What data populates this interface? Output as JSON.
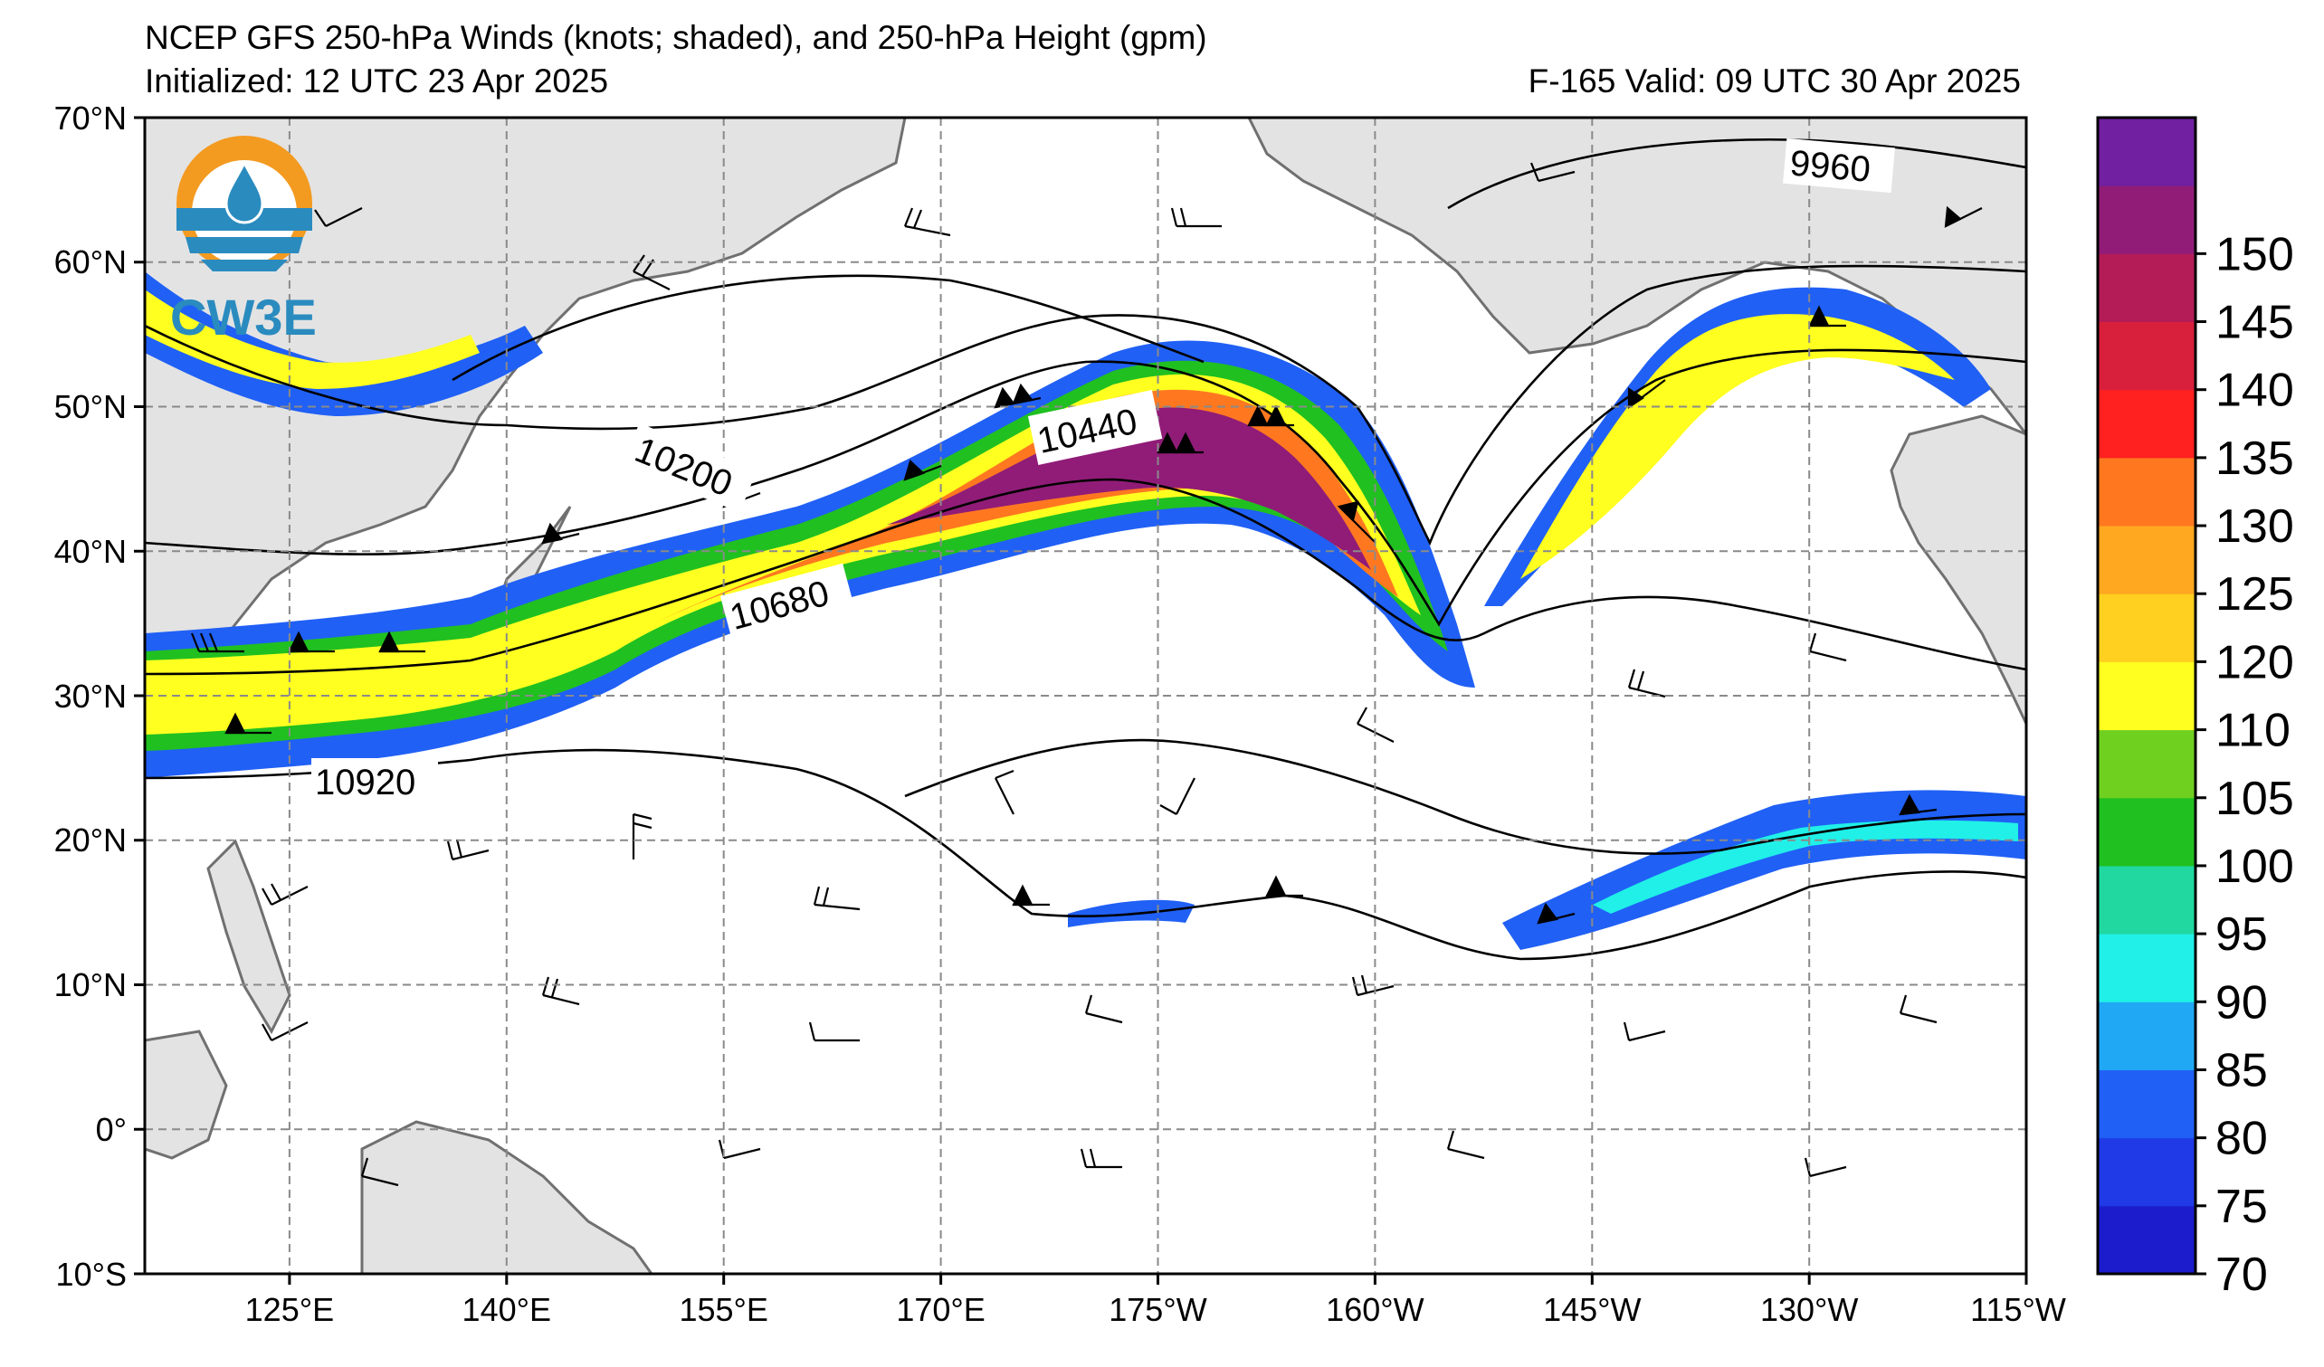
{
  "title": {
    "line1": "NCEP GFS 250-hPa Winds (knots; shaded), and 250-hPa Height (gpm)",
    "initialized": "Initialized: 12 UTC 23 Apr 2025",
    "valid": "F-165  Valid: 09 UTC 30 Apr 2025"
  },
  "logo": {
    "text": "CW3E",
    "icon": "water-drop-sun-icon"
  },
  "map": {
    "lat_labels": [
      "70°N",
      "60°N",
      "50°N",
      "40°N",
      "30°N",
      "20°N",
      "10°N",
      "0°",
      "10°S"
    ],
    "lon_labels": [
      "125°E",
      "140°E",
      "155°E",
      "170°E",
      "175°W",
      "160°W",
      "145°W",
      "130°W",
      "115°W"
    ],
    "lat_range": [
      -10,
      70
    ],
    "lon_range": [
      "115°E",
      "115°W"
    ],
    "contour_labels": [
      "9960",
      "10200",
      "10440",
      "10680",
      "10920"
    ],
    "land_color": "#e3e3e3",
    "grid": "dashed gray"
  },
  "colorbar": {
    "ticks": [
      "70",
      "75",
      "80",
      "85",
      "90",
      "95",
      "100",
      "105",
      "110",
      "120",
      "125",
      "130",
      "135",
      "140",
      "145",
      "150"
    ],
    "colors": [
      "#1c1ccc",
      "#1f3ae6",
      "#2060f5",
      "#20a8f5",
      "#20f0e8",
      "#20d8a0",
      "#20c020",
      "#70d020",
      "#ffff20",
      "#ffd020",
      "#ffa820",
      "#ff7820",
      "#ff2020",
      "#d8203c",
      "#b41c58",
      "#901c78",
      "#7020a0"
    ]
  }
}
